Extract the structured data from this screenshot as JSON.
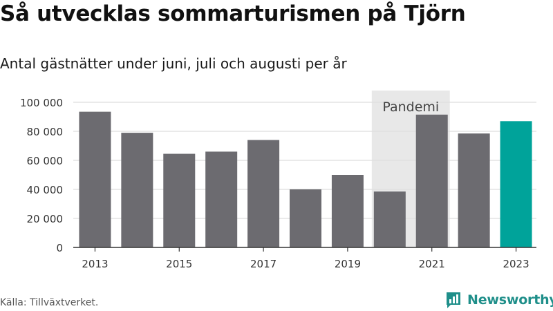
{
  "title": "Så utvecklas sommarturismen på Tjörn",
  "subtitle": "Antal gästnätter under juni, juli och augusti per år",
  "source": "Källa: Tillväxtverket.",
  "brand": "Newsworthy",
  "colors": {
    "bar": "#6c6b70",
    "highlight": "#00a39a",
    "shade": "#e8e8e8",
    "grid": "#dddddd",
    "axis": "#333333",
    "brand": "#1f8f8a"
  },
  "chart_data": {
    "type": "bar",
    "x": [
      2013,
      2014,
      2015,
      2016,
      2017,
      2018,
      2019,
      2020,
      2021,
      2022,
      2023
    ],
    "values": [
      93500,
      79000,
      64500,
      66000,
      74000,
      40000,
      50000,
      38500,
      91500,
      78500,
      87000
    ],
    "highlight_index": 10,
    "x_tick_labels": [
      "2013",
      "2015",
      "2017",
      "2019",
      "2021",
      "2023"
    ],
    "y_ticks": [
      0,
      20000,
      40000,
      60000,
      80000,
      100000
    ],
    "y_tick_labels": [
      "0",
      "20 000",
      "40 000",
      "60 000",
      "80 000",
      "100 000"
    ],
    "ylim": [
      0,
      100000
    ],
    "grid": true,
    "annotation": {
      "label": "Pandemi",
      "from": 2020,
      "to": 2021
    }
  }
}
